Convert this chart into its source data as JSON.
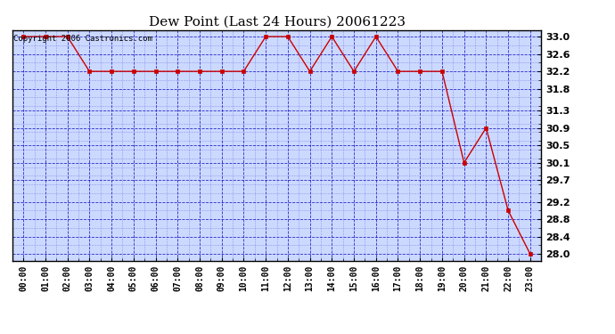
{
  "title": "Dew Point (Last 24 Hours) 20061223",
  "copyright_text": "Copyright 2006 Castronics.com",
  "x_labels": [
    "00:00",
    "01:00",
    "02:00",
    "03:00",
    "04:00",
    "05:00",
    "06:00",
    "07:00",
    "08:00",
    "09:00",
    "10:00",
    "11:00",
    "12:00",
    "13:00",
    "14:00",
    "15:00",
    "16:00",
    "17:00",
    "18:00",
    "19:00",
    "20:00",
    "21:00",
    "22:00",
    "23:00"
  ],
  "y_values": [
    33.0,
    33.0,
    33.0,
    32.2,
    32.2,
    32.2,
    32.2,
    32.2,
    32.2,
    32.2,
    32.2,
    33.0,
    33.0,
    32.2,
    33.0,
    32.2,
    33.0,
    32.2,
    32.2,
    32.2,
    30.1,
    30.9,
    29.0,
    28.0
  ],
  "y_ticks": [
    28.0,
    28.4,
    28.8,
    29.2,
    29.7,
    30.1,
    30.5,
    30.9,
    31.3,
    31.8,
    32.2,
    32.6,
    33.0
  ],
  "ylim": [
    27.85,
    33.15
  ],
  "line_color": "#cc0000",
  "marker_color": "#cc0000",
  "outer_bg_color": "#ffffff",
  "plot_bg_color": "#ccd9ff",
  "grid_major_color": "#0000bb",
  "grid_minor_color": "#6666dd",
  "border_color": "#000000",
  "title_fontsize": 11,
  "copyright_fontsize": 6.5,
  "tick_fontsize": 7,
  "ytick_fontsize": 8
}
